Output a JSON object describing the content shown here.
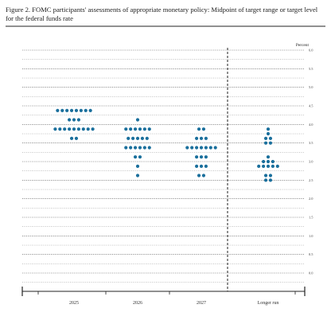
{
  "title": "Figure 2.  FOMC participants' assessments of appropriate monetary policy:  Midpoint of target range or target level for the federal funds rate",
  "colors": {
    "dot": "#1a6f9c",
    "axis": "#222222",
    "grid": "#555555"
  },
  "chart_data": {
    "type": "scatter",
    "title": "Figure 2.  FOMC participants' assessments of appropriate monetary policy:  Midpoint of target range or target level for the federal funds rate",
    "ylabel": "Percent",
    "ylim": [
      0,
      6
    ],
    "yticks": [
      "0.0",
      "0.5",
      "1.0",
      "1.5",
      "2.0",
      "2.5",
      "3.0",
      "3.5",
      "4.0",
      "4.5",
      "5.0",
      "5.5",
      "6.0"
    ],
    "grid": true,
    "categories": [
      "2025",
      "2026",
      "2027",
      "Longer run"
    ],
    "dots": [
      {
        "category": "2025",
        "rates": [
          {
            "rate": 4.375,
            "count": 8
          },
          {
            "rate": 4.125,
            "count": 3
          },
          {
            "rate": 3.875,
            "count": 9
          },
          {
            "rate": 3.625,
            "count": 2
          }
        ]
      },
      {
        "category": "2026",
        "rates": [
          {
            "rate": 4.125,
            "count": 1
          },
          {
            "rate": 3.875,
            "count": 6
          },
          {
            "rate": 3.625,
            "count": 5
          },
          {
            "rate": 3.375,
            "count": 6
          },
          {
            "rate": 3.125,
            "count": 2
          },
          {
            "rate": 2.875,
            "count": 1
          },
          {
            "rate": 2.625,
            "count": 1
          }
        ]
      },
      {
        "category": "2027",
        "rates": [
          {
            "rate": 3.875,
            "count": 2
          },
          {
            "rate": 3.625,
            "count": 3
          },
          {
            "rate": 3.375,
            "count": 7
          },
          {
            "rate": 3.125,
            "count": 3
          },
          {
            "rate": 2.875,
            "count": 3
          },
          {
            "rate": 2.625,
            "count": 2
          }
        ]
      },
      {
        "category": "Longer run",
        "rates": [
          {
            "rate": 3.875,
            "count": 1
          },
          {
            "rate": 3.75,
            "count": 1
          },
          {
            "rate": 3.625,
            "count": 2
          },
          {
            "rate": 3.5,
            "count": 2
          },
          {
            "rate": 3.125,
            "count": 1
          },
          {
            "rate": 3.0,
            "count": 3
          },
          {
            "rate": 2.875,
            "count": 5
          },
          {
            "rate": 2.625,
            "count": 2
          },
          {
            "rate": 2.5,
            "count": 2
          }
        ]
      }
    ]
  }
}
